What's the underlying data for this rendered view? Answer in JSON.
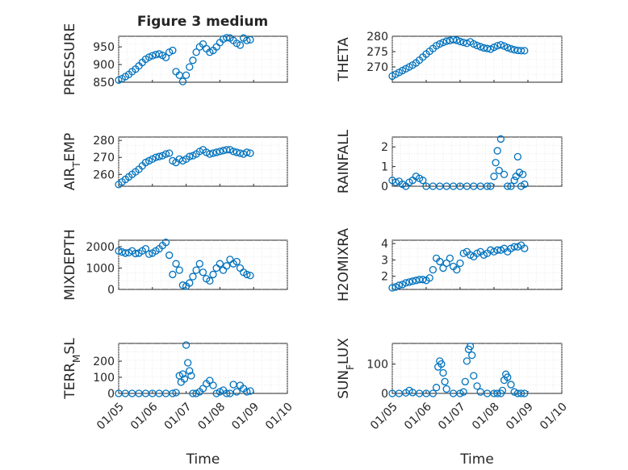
{
  "figure_title": "Figure 3 medium",
  "colors": {
    "marker": "#0072bd",
    "axis": "#262626",
    "grid": "#dedede"
  },
  "chart_data": [
    {
      "type": "scatter",
      "ylabel": "PRESSURE",
      "ylim": [
        850,
        980
      ],
      "yticks": [
        850,
        900,
        950
      ],
      "xlim": [
        0,
        5
      ],
      "xticks": [],
      "x": [
        0.0,
        0.1,
        0.2,
        0.3,
        0.4,
        0.5,
        0.6,
        0.7,
        0.8,
        0.9,
        1.0,
        1.1,
        1.2,
        1.3,
        1.4,
        1.5,
        1.6,
        1.7,
        1.8,
        1.9,
        2.0,
        2.1,
        2.2,
        2.3,
        2.4,
        2.5,
        2.6,
        2.7,
        2.8,
        2.9,
        3.0,
        3.1,
        3.2,
        3.3,
        3.4,
        3.5,
        3.6,
        3.7,
        3.8,
        3.9
      ],
      "y": [
        856,
        860,
        866,
        872,
        880,
        887,
        896,
        906,
        915,
        921,
        925,
        928,
        930,
        926,
        920,
        935,
        940,
        880,
        870,
        852,
        870,
        893,
        912,
        935,
        950,
        958,
        945,
        935,
        940,
        950,
        962,
        972,
        976,
        975,
        968,
        960,
        955,
        975,
        968,
        970
      ]
    },
    {
      "type": "scatter",
      "ylabel": "THETA",
      "ylim": [
        265,
        280
      ],
      "yticks": [
        270,
        275,
        280
      ],
      "xlim": [
        0,
        5
      ],
      "xticks": [],
      "x": [
        0.0,
        0.1,
        0.2,
        0.3,
        0.4,
        0.5,
        0.6,
        0.7,
        0.8,
        0.9,
        1.0,
        1.1,
        1.2,
        1.3,
        1.4,
        1.5,
        1.6,
        1.7,
        1.8,
        1.9,
        2.0,
        2.1,
        2.2,
        2.3,
        2.4,
        2.5,
        2.6,
        2.7,
        2.8,
        2.9,
        3.0,
        3.1,
        3.2,
        3.3,
        3.4,
        3.5,
        3.6,
        3.7,
        3.8,
        3.9
      ],
      "y": [
        267,
        267.6,
        268.2,
        268.8,
        269.4,
        270.0,
        270.6,
        271.3,
        272.2,
        273.2,
        274.2,
        275.1,
        276.0,
        276.9,
        277.5,
        278.0,
        278.4,
        278.6,
        278.9,
        278.7,
        278.3,
        278.0,
        277.7,
        278.2,
        277.5,
        277.0,
        276.6,
        276.2,
        276.0,
        275.8,
        276.4,
        276.9,
        277.2,
        276.8,
        276.3,
        275.9,
        275.6,
        275.4,
        275.3,
        275.3
      ]
    },
    {
      "type": "scatter",
      "ylabel_parts": [
        "AIR",
        "T",
        "EMP"
      ],
      "ylim": [
        253,
        282
      ],
      "yticks": [
        260,
        270,
        280
      ],
      "xlim": [
        0,
        5
      ],
      "xticks": [],
      "x": [
        0.0,
        0.1,
        0.2,
        0.3,
        0.4,
        0.5,
        0.6,
        0.7,
        0.8,
        0.9,
        1.0,
        1.1,
        1.2,
        1.3,
        1.4,
        1.5,
        1.6,
        1.7,
        1.8,
        1.9,
        2.0,
        2.1,
        2.2,
        2.3,
        2.4,
        2.5,
        2.6,
        2.7,
        2.8,
        2.9,
        3.0,
        3.1,
        3.2,
        3.3,
        3.4,
        3.5,
        3.6,
        3.7,
        3.8,
        3.9
      ],
      "y": [
        254,
        255.5,
        257,
        258.5,
        260,
        261.5,
        263,
        265,
        267,
        268,
        269,
        270,
        270.5,
        271,
        272,
        272.5,
        268,
        267,
        269,
        268,
        269,
        270.5,
        271,
        272,
        273.5,
        274.5,
        273,
        272,
        272.5,
        273,
        273.5,
        274,
        274.5,
        274.5,
        273.5,
        273,
        272.5,
        272,
        273,
        272.5
      ]
    },
    {
      "type": "scatter",
      "ylabel": "RAINFALL",
      "ylim": [
        0,
        2.5
      ],
      "yticks": [
        0,
        1,
        2
      ],
      "xlim": [
        0,
        5
      ],
      "xticks": [],
      "x": [
        0.0,
        0.1,
        0.2,
        0.3,
        0.4,
        0.5,
        0.6,
        0.7,
        0.8,
        0.9,
        1.0,
        1.2,
        1.4,
        1.6,
        1.8,
        2.0,
        2.2,
        2.4,
        2.6,
        2.8,
        2.9,
        3.0,
        3.05,
        3.1,
        3.15,
        3.2,
        3.3,
        3.4,
        3.5,
        3.6,
        3.65,
        3.7,
        3.75,
        3.8,
        3.85,
        3.9
      ],
      "y": [
        0.3,
        0.2,
        0.25,
        0.1,
        0.0,
        0.2,
        0.3,
        0.5,
        0.4,
        0.3,
        0.0,
        0.0,
        0.0,
        0.0,
        0.0,
        0.0,
        0.0,
        0.0,
        0.0,
        0.0,
        0.0,
        0.5,
        1.2,
        1.8,
        0.8,
        2.4,
        0.6,
        0.0,
        0.0,
        0.3,
        0.5,
        1.5,
        0.7,
        0.0,
        0.6,
        0.1
      ]
    },
    {
      "type": "scatter",
      "ylabel": "MIXDEPTH",
      "ylim": [
        0,
        2300
      ],
      "yticks": [
        0,
        1000,
        2000
      ],
      "xlim": [
        0,
        5
      ],
      "xticks": [],
      "x": [
        0.0,
        0.1,
        0.2,
        0.3,
        0.4,
        0.5,
        0.6,
        0.7,
        0.8,
        0.9,
        1.0,
        1.1,
        1.2,
        1.3,
        1.4,
        1.5,
        1.6,
        1.7,
        1.8,
        1.9,
        2.0,
        2.1,
        2.2,
        2.3,
        2.4,
        2.5,
        2.6,
        2.7,
        2.8,
        2.9,
        3.0,
        3.1,
        3.2,
        3.3,
        3.4,
        3.5,
        3.6,
        3.7,
        3.8,
        3.9
      ],
      "y": [
        1800,
        1750,
        1700,
        1720,
        1800,
        1680,
        1700,
        1800,
        1900,
        1650,
        1700,
        1800,
        1900,
        2050,
        2200,
        1600,
        700,
        1200,
        900,
        200,
        150,
        300,
        600,
        900,
        1200,
        800,
        500,
        400,
        700,
        1000,
        1200,
        900,
        1100,
        1400,
        1200,
        1300,
        1000,
        800,
        700,
        650
      ]
    },
    {
      "type": "scatter",
      "ylabel": "H2OMIXRA",
      "ylim": [
        1.2,
        4.2
      ],
      "yticks": [
        2,
        3,
        4
      ],
      "xlim": [
        0,
        5
      ],
      "xticks": [],
      "x": [
        0.0,
        0.1,
        0.2,
        0.3,
        0.4,
        0.5,
        0.6,
        0.7,
        0.8,
        0.9,
        1.0,
        1.1,
        1.2,
        1.3,
        1.4,
        1.5,
        1.6,
        1.7,
        1.8,
        1.9,
        2.0,
        2.1,
        2.2,
        2.3,
        2.4,
        2.5,
        2.6,
        2.7,
        2.8,
        2.9,
        3.0,
        3.1,
        3.2,
        3.3,
        3.4,
        3.5,
        3.6,
        3.7,
        3.8,
        3.9
      ],
      "y": [
        1.3,
        1.35,
        1.45,
        1.5,
        1.6,
        1.65,
        1.7,
        1.75,
        1.8,
        1.8,
        1.75,
        1.9,
        2.4,
        3.1,
        2.9,
        2.5,
        2.8,
        3.1,
        2.6,
        2.4,
        2.8,
        3.4,
        3.5,
        3.3,
        3.2,
        3.4,
        3.5,
        3.3,
        3.4,
        3.6,
        3.5,
        3.6,
        3.6,
        3.7,
        3.5,
        3.7,
        3.8,
        3.8,
        3.9,
        3.7
      ]
    },
    {
      "type": "scatter",
      "ylabel_parts": [
        "TERR",
        "M",
        "SL"
      ],
      "ylim": [
        0,
        310
      ],
      "yticks": [
        0,
        100,
        200
      ],
      "xlim": [
        0,
        5
      ],
      "xticklabels": [
        "01/05",
        "01/06",
        "01/07",
        "01/08",
        "01/09",
        "01/10"
      ],
      "xlabel": "Time",
      "x": [
        0.0,
        0.2,
        0.4,
        0.6,
        0.8,
        1.0,
        1.2,
        1.4,
        1.6,
        1.7,
        1.8,
        1.85,
        1.9,
        1.95,
        2.0,
        2.05,
        2.1,
        2.15,
        2.2,
        2.3,
        2.4,
        2.5,
        2.6,
        2.7,
        2.8,
        2.9,
        3.0,
        3.1,
        3.2,
        3.3,
        3.4,
        3.5,
        3.6,
        3.7,
        3.8,
        3.9
      ],
      "y": [
        0,
        0,
        0,
        0,
        0,
        0,
        0,
        0,
        0,
        5,
        110,
        70,
        120,
        90,
        300,
        190,
        140,
        110,
        0,
        0,
        10,
        30,
        60,
        80,
        50,
        0,
        10,
        20,
        0,
        0,
        55,
        10,
        50,
        30,
        10,
        15
      ]
    },
    {
      "type": "scatter",
      "ylabel_parts": [
        "SUN",
        "F",
        "LUX"
      ],
      "ylim": [
        0,
        170
      ],
      "yticks": [
        0,
        100
      ],
      "xlim": [
        0,
        5
      ],
      "xticklabels": [
        "01/05",
        "01/06",
        "01/07",
        "01/08",
        "01/09",
        "01/10"
      ],
      "xlabel": "Time",
      "x": [
        0.0,
        0.2,
        0.4,
        0.5,
        0.6,
        0.8,
        1.0,
        1.2,
        1.3,
        1.35,
        1.4,
        1.45,
        1.5,
        1.55,
        1.6,
        1.8,
        2.0,
        2.1,
        2.15,
        2.2,
        2.25,
        2.3,
        2.35,
        2.4,
        2.5,
        2.6,
        2.8,
        3.0,
        3.1,
        3.2,
        3.25,
        3.3,
        3.35,
        3.4,
        3.5,
        3.6,
        3.7,
        3.8,
        3.9
      ],
      "y": [
        0,
        0,
        2,
        10,
        3,
        0,
        0,
        0,
        20,
        90,
        110,
        100,
        70,
        40,
        15,
        0,
        0,
        5,
        40,
        110,
        150,
        160,
        130,
        60,
        25,
        5,
        0,
        0,
        0,
        0,
        10,
        45,
        65,
        55,
        30,
        5,
        0,
        0,
        0
      ]
    }
  ]
}
